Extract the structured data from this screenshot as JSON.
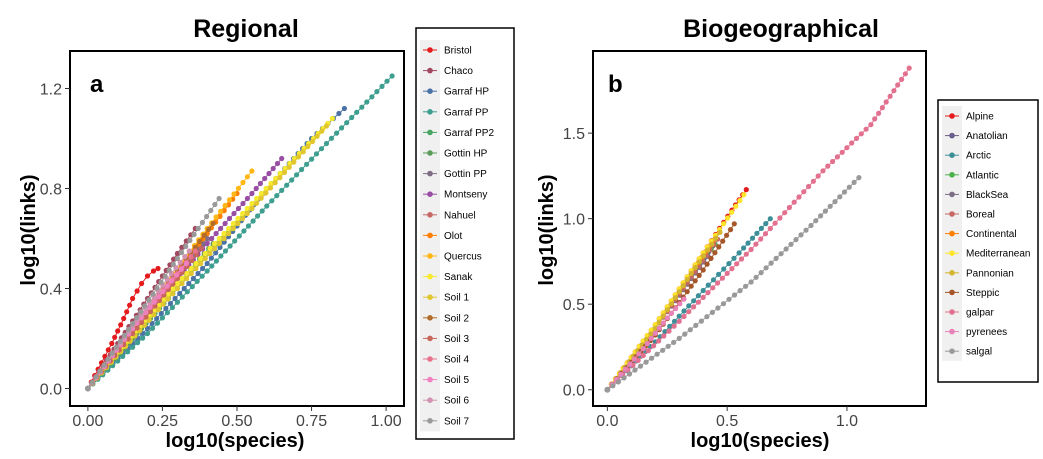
{
  "chart_data": [
    {
      "type": "line",
      "title": "Regional",
      "panel_tag": "a",
      "xlabel": "log10(species)",
      "ylabel": "log10(links)",
      "xlim": [
        -0.06,
        1.06
      ],
      "ylim": [
        -0.07,
        1.35
      ],
      "xticks": [
        0.0,
        0.25,
        0.5,
        0.75,
        1.0
      ],
      "xtick_labels": [
        "0.00",
        "0.25",
        "0.50",
        "0.75",
        "1.00"
      ],
      "yticks": [
        0.0,
        0.4,
        0.8,
        1.2
      ],
      "ytick_labels": [
        "0.0",
        "0.4",
        "0.8",
        "1.2"
      ],
      "grid": false,
      "legend_position": "right",
      "series": [
        {
          "name": "Bristol",
          "color": "#e41a1c",
          "x": [
            0,
            0.08,
            0.12,
            0.15,
            0.18,
            0.2,
            0.22,
            0.235
          ],
          "y": [
            0,
            0.18,
            0.28,
            0.36,
            0.42,
            0.45,
            0.47,
            0.48
          ]
        },
        {
          "name": "Chaco",
          "color": "#a2475e",
          "x": [
            0,
            0.1,
            0.2,
            0.3,
            0.36
          ],
          "y": [
            0,
            0.18,
            0.36,
            0.54,
            0.64
          ]
        },
        {
          "name": "Garraf HP",
          "color": "#4a72a6",
          "x": [
            0,
            0.2,
            0.4,
            0.6,
            0.75,
            0.86
          ],
          "y": [
            0,
            0.24,
            0.5,
            0.8,
            1.0,
            1.12
          ]
        },
        {
          "name": "Garraf PP",
          "color": "#3e9e8f",
          "x": [
            0,
            0.2,
            0.4,
            0.6,
            0.8,
            1.02
          ],
          "y": [
            0,
            0.22,
            0.47,
            0.73,
            0.98,
            1.25
          ]
        },
        {
          "name": "Garraf PP2",
          "color": "#48a462",
          "x": [
            0,
            0.15,
            0.3,
            0.45,
            0.55
          ],
          "y": [
            0,
            0.2,
            0.4,
            0.6,
            0.72
          ]
        },
        {
          "name": "Gottin HP",
          "color": "#5a9d5a",
          "x": [
            0,
            0.15,
            0.3,
            0.42
          ],
          "y": [
            0,
            0.2,
            0.42,
            0.58
          ]
        },
        {
          "name": "Gottin PP",
          "color": "#7e6e85",
          "x": [
            0,
            0.15,
            0.3,
            0.4
          ],
          "y": [
            0,
            0.22,
            0.45,
            0.6
          ]
        },
        {
          "name": "Montseny",
          "color": "#984ea3",
          "x": [
            0,
            0.2,
            0.4,
            0.55,
            0.65
          ],
          "y": [
            0,
            0.3,
            0.58,
            0.78,
            0.92
          ]
        },
        {
          "name": "Nahuel",
          "color": "#c66764",
          "x": [
            0,
            0.15,
            0.3,
            0.4
          ],
          "y": [
            0,
            0.24,
            0.47,
            0.62
          ]
        },
        {
          "name": "Olot",
          "color": "#ff7f00",
          "x": [
            0,
            0.2,
            0.4,
            0.5
          ],
          "y": [
            0,
            0.32,
            0.62,
            0.78
          ]
        },
        {
          "name": "Quercus",
          "color": "#ffb716",
          "x": [
            0,
            0.2,
            0.4,
            0.55
          ],
          "y": [
            0,
            0.32,
            0.64,
            0.87
          ]
        },
        {
          "name": "Sanak",
          "color": "#f7e92f",
          "x": [
            0,
            0.3,
            0.55,
            0.82
          ],
          "y": [
            0,
            0.42,
            0.74,
            1.08
          ]
        },
        {
          "name": "Soil 1",
          "color": "#e1c62f",
          "x": [
            0,
            0.3,
            0.55,
            0.8
          ],
          "y": [
            0,
            0.4,
            0.72,
            1.05
          ]
        },
        {
          "name": "Soil 2",
          "color": "#b16c29",
          "x": [
            0,
            0.15,
            0.3,
            0.42
          ],
          "y": [
            0,
            0.24,
            0.47,
            0.66
          ]
        },
        {
          "name": "Soil 3",
          "color": "#c9665b",
          "x": [
            0,
            0.15,
            0.3,
            0.38
          ],
          "y": [
            0,
            0.22,
            0.44,
            0.56
          ]
        },
        {
          "name": "Soil 4",
          "color": "#e9728d",
          "x": [
            0,
            0.15,
            0.3,
            0.36
          ],
          "y": [
            0,
            0.24,
            0.46,
            0.55
          ]
        },
        {
          "name": "Soil 5",
          "color": "#f081c0",
          "x": [
            0,
            0.15,
            0.28,
            0.33
          ],
          "y": [
            0,
            0.24,
            0.43,
            0.5
          ]
        },
        {
          "name": "Soil 6",
          "color": "#d193b1",
          "x": [
            0,
            0.15,
            0.28,
            0.34
          ],
          "y": [
            0,
            0.25,
            0.46,
            0.55
          ]
        },
        {
          "name": "Soil 7",
          "color": "#999999",
          "x": [
            0,
            0.15,
            0.3,
            0.44
          ],
          "y": [
            0,
            0.26,
            0.52,
            0.76
          ]
        }
      ]
    },
    {
      "type": "line",
      "title": "Biogeographical",
      "panel_tag": "b",
      "xlabel": "log10(species)",
      "ylabel": "log10(links)",
      "xlim": [
        -0.06,
        1.33
      ],
      "ylim": [
        -0.095,
        1.98
      ],
      "xticks": [
        0.0,
        0.5,
        1.0
      ],
      "xtick_labels": [
        "0.0",
        "0.5",
        "1.0"
      ],
      "yticks": [
        0.0,
        0.5,
        1.0,
        1.5
      ],
      "ytick_labels": [
        "0.0",
        "0.5",
        "1.0",
        "1.5"
      ],
      "grid": false,
      "legend_position": "right",
      "series": [
        {
          "name": "Alpine",
          "color": "#e41a1c",
          "x": [
            0,
            0.2,
            0.4,
            0.52,
            0.58
          ],
          "y": [
            0,
            0.38,
            0.8,
            1.05,
            1.17
          ]
        },
        {
          "name": "Anatolian",
          "color": "#6a5c8e",
          "x": [
            0,
            0.2,
            0.35,
            0.44
          ],
          "y": [
            0,
            0.36,
            0.66,
            0.84
          ]
        },
        {
          "name": "Arctic",
          "color": "#3c8f98",
          "x": [
            0,
            0.2,
            0.4,
            0.55,
            0.68
          ],
          "y": [
            0,
            0.28,
            0.58,
            0.8,
            1.0
          ]
        },
        {
          "name": "Atlantic",
          "color": "#4daf4a",
          "x": [
            0,
            0.2,
            0.35,
            0.45
          ],
          "y": [
            0,
            0.36,
            0.66,
            0.85
          ]
        },
        {
          "name": "BlackSea",
          "color": "#7e6e85",
          "x": [
            0,
            0.2,
            0.35,
            0.42
          ],
          "y": [
            0,
            0.36,
            0.65,
            0.78
          ]
        },
        {
          "name": "Boreal",
          "color": "#c66764",
          "x": [
            0,
            0.2,
            0.35,
            0.46
          ],
          "y": [
            0,
            0.36,
            0.66,
            0.88
          ]
        },
        {
          "name": "Continental",
          "color": "#ff7f00",
          "x": [
            0,
            0.2,
            0.35,
            0.44
          ],
          "y": [
            0,
            0.36,
            0.68,
            0.87
          ]
        },
        {
          "name": "Mediterranean",
          "color": "#ffe62b",
          "x": [
            0,
            0.2,
            0.4,
            0.57
          ],
          "y": [
            0,
            0.38,
            0.8,
            1.14
          ]
        },
        {
          "name": "Pannonian",
          "color": "#d4b52f",
          "x": [
            0,
            0.2,
            0.35,
            0.47
          ],
          "y": [
            0,
            0.36,
            0.68,
            0.92
          ]
        },
        {
          "name": "Steppic",
          "color": "#a65628",
          "x": [
            0,
            0.2,
            0.4,
            0.53
          ],
          "y": [
            0,
            0.32,
            0.7,
            0.97
          ]
        },
        {
          "name": "galpar",
          "color": "#e27190",
          "x": [
            0,
            0.3,
            0.6,
            0.9,
            1.1,
            1.26
          ],
          "y": [
            0,
            0.4,
            0.82,
            1.28,
            1.55,
            1.88
          ]
        },
        {
          "name": "pyrenees",
          "color": "#e882b9",
          "x": [
            0,
            0.15,
            0.25,
            0.32
          ],
          "y": [
            0,
            0.24,
            0.42,
            0.53
          ]
        },
        {
          "name": "salgal",
          "color": "#999999",
          "x": [
            0,
            0.3,
            0.6,
            0.85,
            1.05
          ],
          "y": [
            0,
            0.3,
            0.63,
            0.96,
            1.24
          ]
        }
      ]
    }
  ]
}
